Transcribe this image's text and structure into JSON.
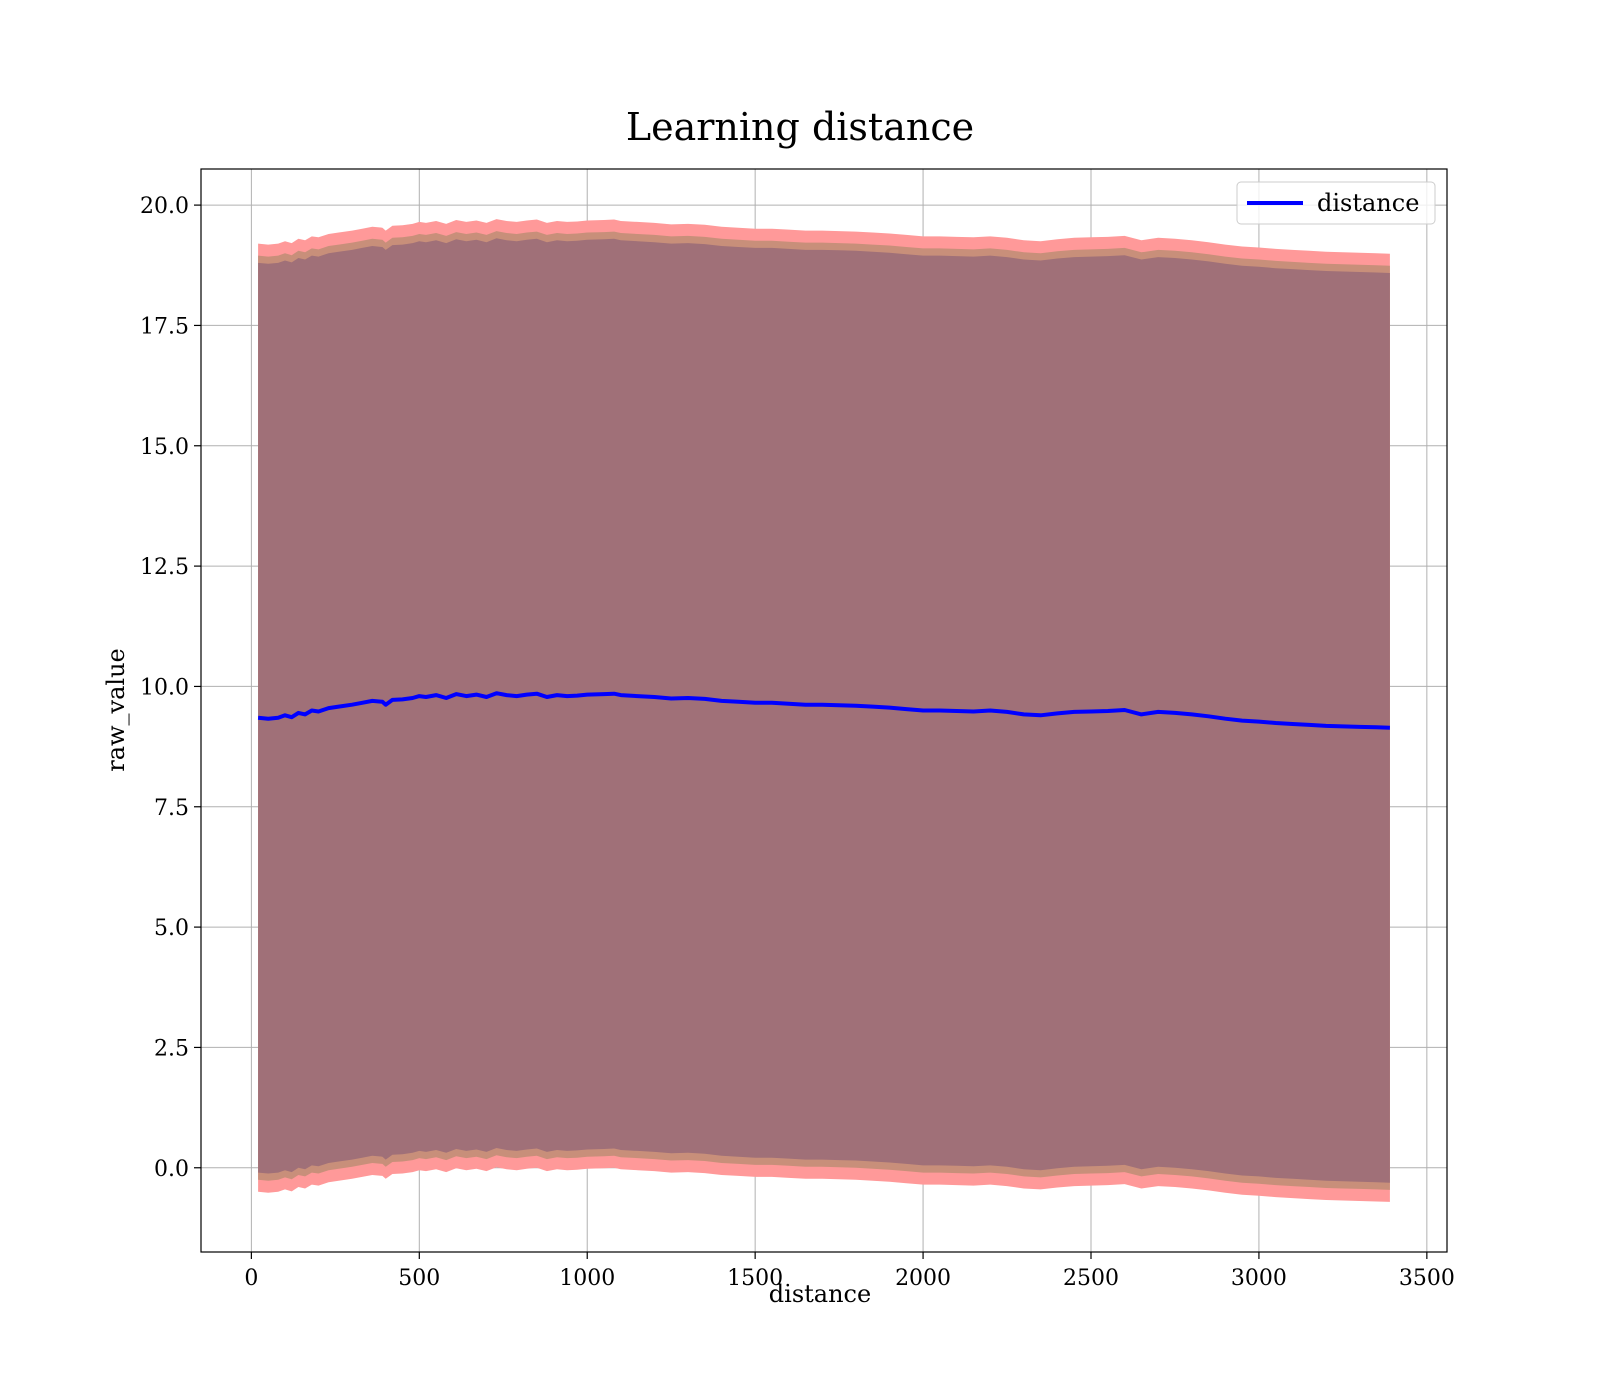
{
  "chart_data": {
    "type": "line",
    "title": "Learning distance",
    "xlabel": "distance",
    "ylabel": "raw_value",
    "xlim": [
      -150,
      3560
    ],
    "ylim": [
      -1.75,
      20.75
    ],
    "xticks": [
      0,
      500,
      1000,
      1500,
      2000,
      2500,
      3000,
      3500
    ],
    "xtick_labels": [
      "0",
      "500",
      "1000",
      "1500",
      "2000",
      "2500",
      "3000",
      "3500"
    ],
    "yticks": [
      0,
      2.5,
      5,
      7.5,
      10,
      12.5,
      15,
      17.5,
      20
    ],
    "ytick_labels": [
      "0.0",
      "2.5",
      "5.0",
      "7.5",
      "10.0",
      "12.5",
      "15.0",
      "17.5",
      "20.0"
    ],
    "grid": true,
    "legend": {
      "placement": "top-right",
      "entries": [
        "distance"
      ]
    },
    "colors": {
      "line": "#0000ff",
      "band_outer": "#ff9999",
      "band_middle": "#c88f7a",
      "band_inner": "#a07078",
      "frame": "#000000",
      "grid": "#b0b0b0"
    },
    "series": [
      {
        "name": "distance",
        "x": [
          20,
          50,
          80,
          100,
          120,
          140,
          160,
          180,
          200,
          230,
          260,
          300,
          330,
          360,
          390,
          400,
          420,
          450,
          480,
          500,
          520,
          550,
          580,
          610,
          640,
          670,
          700,
          730,
          760,
          790,
          820,
          850,
          880,
          910,
          940,
          970,
          1000,
          1050,
          1080,
          1100,
          1150,
          1200,
          1250,
          1300,
          1350,
          1400,
          1450,
          1500,
          1550,
          1600,
          1650,
          1700,
          1750,
          1800,
          1850,
          1900,
          1950,
          2000,
          2050,
          2100,
          2150,
          2200,
          2250,
          2300,
          2350,
          2400,
          2450,
          2500,
          2550,
          2600,
          2650,
          2700,
          2750,
          2800,
          2850,
          2900,
          2950,
          3000,
          3050,
          3100,
          3150,
          3200,
          3250,
          3300,
          3350,
          3390
        ],
        "values": [
          9.35,
          9.33,
          9.35,
          9.4,
          9.36,
          9.45,
          9.42,
          9.5,
          9.48,
          9.55,
          9.58,
          9.62,
          9.66,
          9.7,
          9.68,
          9.62,
          9.72,
          9.73,
          9.76,
          9.8,
          9.78,
          9.82,
          9.76,
          9.84,
          9.8,
          9.83,
          9.78,
          9.86,
          9.82,
          9.8,
          9.83,
          9.85,
          9.78,
          9.82,
          9.8,
          9.81,
          9.83,
          9.84,
          9.85,
          9.82,
          9.8,
          9.78,
          9.75,
          9.76,
          9.74,
          9.7,
          9.68,
          9.66,
          9.66,
          9.64,
          9.62,
          9.62,
          9.61,
          9.6,
          9.58,
          9.56,
          9.53,
          9.5,
          9.5,
          9.49,
          9.48,
          9.5,
          9.47,
          9.42,
          9.4,
          9.44,
          9.47,
          9.48,
          9.49,
          9.51,
          9.42,
          9.47,
          9.45,
          9.42,
          9.38,
          9.33,
          9.29,
          9.27,
          9.24,
          9.22,
          9.2,
          9.18,
          9.17,
          9.16,
          9.15,
          9.14
        ]
      }
    ],
    "bands": [
      {
        "half_width": 9.85,
        "color_key": "band_outer"
      },
      {
        "half_width": 9.6,
        "color_key": "band_middle"
      },
      {
        "half_width": 9.45,
        "color_key": "band_inner"
      }
    ]
  }
}
